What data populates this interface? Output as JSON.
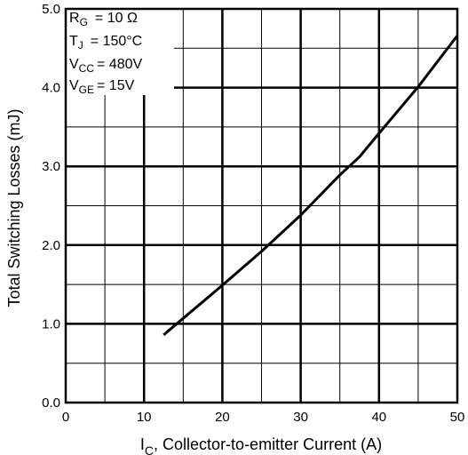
{
  "chart_data": {
    "type": "line",
    "title": "",
    "xlabel_prefix": "I",
    "xlabel_sub": "C",
    "xlabel_rest": ", Collector-to-emitter Current (A)",
    "ylabel": "Total Switching Losses (mJ)",
    "xlim": [
      0,
      50
    ],
    "ylim": [
      0.0,
      5.0
    ],
    "xticks": [
      0,
      10,
      20,
      30,
      40,
      50
    ],
    "xtick_labels": [
      "0",
      "10",
      "20",
      "30",
      "40",
      "50"
    ],
    "yticks": [
      0.0,
      1.0,
      2.0,
      3.0,
      4.0,
      5.0
    ],
    "ytick_labels": [
      "0.0",
      "1.0",
      "2.0",
      "3.0",
      "4.0",
      "5.0"
    ],
    "grid": true,
    "series": [
      {
        "x": [
          12.5,
          15,
          20,
          25,
          30,
          35,
          37.5,
          40,
          45,
          50
        ],
        "y": [
          0.86,
          1.07,
          1.49,
          1.92,
          2.38,
          2.89,
          3.12,
          3.42,
          4.01,
          4.66
        ]
      }
    ],
    "conditions": [
      {
        "sym": "R",
        "sub": "G",
        "val": "= 10 Ω"
      },
      {
        "sym": "T",
        "sub": "J",
        "val": "= 150°C"
      },
      {
        "sym": "V",
        "sub": "CC",
        "val": "= 480V"
      },
      {
        "sym": "V",
        "sub": "GE",
        "val": "= 15V"
      }
    ]
  }
}
